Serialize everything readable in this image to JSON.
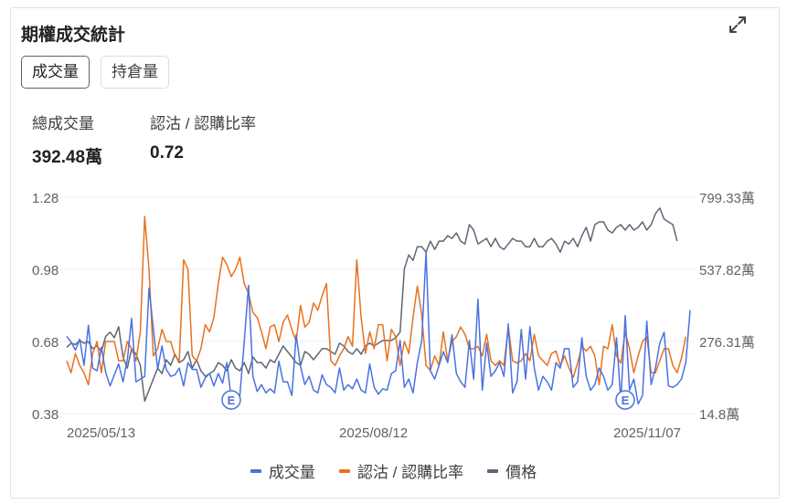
{
  "card": {
    "title": "期權成交統計"
  },
  "tabs": [
    {
      "label": "成交量",
      "active": true
    },
    {
      "label": "持倉量",
      "active": false
    }
  ],
  "stats": {
    "total_volume": {
      "label": "總成交量",
      "value": "392.48萬"
    },
    "ratio": {
      "label": "認沽 / 認購比率",
      "value": "0.72"
    }
  },
  "icons": {
    "expand": "expand-icon"
  },
  "colors": {
    "volume": "#4a72e0",
    "ratio": "#e8711e",
    "price": "#5f6675",
    "grid": "#ececec"
  },
  "chart_data": {
    "type": "line",
    "x_tick_labels": [
      "2025/05/13",
      "2025/08/12",
      "2025/11/07"
    ],
    "y_left_ticks": [
      "1.28",
      "0.98",
      "0.68",
      "0.38"
    ],
    "y_right_ticks": [
      "799.33萬",
      "537.82萬",
      "276.31萬",
      "14.8萬"
    ],
    "y_left_range": [
      0.38,
      1.28
    ],
    "y_right_range": [
      14.8,
      799.33
    ],
    "y_right_unit": "萬",
    "markers": [
      {
        "label": "E",
        "index": 38
      },
      {
        "label": "E",
        "index": 129
      }
    ],
    "series": [
      {
        "name": "成交量",
        "axis": "right",
        "values": [
          295,
          275,
          245,
          285,
          190,
          335,
          180,
          170,
          255,
          165,
          115,
          155,
          195,
          130,
          210,
          360,
          130,
          140,
          150,
          470,
          325,
          175,
          260,
          175,
          150,
          155,
          180,
          115,
          200,
          175,
          175,
          110,
          145,
          160,
          115,
          160,
          125,
          200,
          70,
          65,
          80,
          275,
          480,
          150,
          95,
          120,
          90,
          105,
          90,
          205,
          130,
          130,
          80,
          300,
          185,
          120,
          150,
          100,
          90,
          155,
          120,
          110,
          90,
          180,
          100,
          120,
          105,
          140,
          100,
          90,
          195,
          110,
          85,
          105,
          100,
          160,
          170,
          280,
          110,
          140,
          90,
          200,
          280,
          600,
          170,
          140,
          190,
          240,
          200,
          300,
          160,
          130,
          110,
          280,
          140,
          430,
          100,
          270,
          150,
          170,
          200,
          150,
          340,
          90,
          130,
          320,
          140,
          330,
          180,
          100,
          150,
          130,
          100,
          200,
          180,
          250,
          250,
          110,
          130,
          290,
          150,
          100,
          120,
          180,
          150,
          100,
          120,
          290,
          60,
          370,
          100,
          140,
          50,
          80,
          350,
          120,
          180,
          270,
          310,
          115,
          110,
          120,
          140,
          200,
          390
        ]
      },
      {
        "name": "認沽 / 認購比率",
        "axis": "left",
        "values": [
          0.6,
          0.55,
          0.63,
          0.58,
          0.55,
          0.5,
          0.63,
          0.68,
          0.55,
          0.68,
          0.68,
          0.68,
          0.6,
          0.6,
          0.68,
          0.65,
          0.6,
          0.72,
          1.2,
          0.98,
          0.62,
          0.65,
          0.73,
          0.68,
          0.68,
          0.62,
          0.6,
          1.02,
          0.98,
          0.62,
          0.6,
          0.65,
          0.75,
          0.72,
          0.78,
          0.92,
          1.03,
          1.0,
          0.95,
          0.98,
          1.03,
          0.92,
          0.88,
          0.8,
          0.78,
          0.72,
          0.65,
          0.74,
          0.75,
          0.68,
          0.76,
          0.79,
          0.73,
          0.68,
          0.83,
          0.74,
          0.76,
          0.84,
          0.81,
          0.87,
          0.92,
          0.6,
          0.58,
          0.62,
          0.65,
          0.7,
          0.66,
          1.02,
          0.78,
          0.63,
          0.72,
          0.65,
          0.75,
          0.75,
          0.6,
          0.73,
          0.7,
          0.58,
          0.68,
          0.63,
          0.78,
          0.91,
          0.79,
          0.58,
          0.56,
          0.62,
          0.58,
          0.72,
          0.6,
          0.68,
          0.7,
          0.74,
          0.71,
          0.65,
          0.65,
          0.66,
          0.62,
          0.71,
          0.6,
          0.58,
          0.6,
          0.58,
          0.74,
          0.6,
          0.59,
          0.6,
          0.63,
          0.6,
          0.71,
          0.62,
          0.6,
          0.58,
          0.63,
          0.64,
          0.58,
          0.62,
          0.57,
          0.53,
          0.59,
          0.66,
          0.64,
          0.66,
          0.62,
          0.5,
          0.66,
          0.65,
          0.75,
          0.62,
          0.59,
          0.72,
          0.65,
          0.55,
          0.62,
          0.68,
          0.7,
          0.55,
          0.55,
          0.6,
          0.65,
          0.65,
          0.58,
          0.55,
          0.61,
          0.7
        ]
      },
      {
        "name": "價格",
        "axis": "right",
        "values": [
          255,
          270,
          265,
          280,
          270,
          275,
          250,
          260,
          240,
          295,
          310,
          290,
          330,
          220,
          180,
          250,
          230,
          190,
          60,
          100,
          140,
          180,
          160,
          210,
          190,
          230,
          200,
          210,
          240,
          180,
          210,
          170,
          150,
          160,
          170,
          200,
          190,
          170,
          210,
          180,
          170,
          200,
          160,
          220,
          200,
          200,
          180,
          210,
          200,
          230,
          260,
          240,
          220,
          200,
          190,
          240,
          230,
          210,
          230,
          250,
          250,
          240,
          230,
          270,
          260,
          240,
          230,
          250,
          230,
          260,
          270,
          260,
          270,
          280,
          280,
          280,
          290,
          310,
          540,
          590,
          570,
          620,
          620,
          600,
          640,
          610,
          640,
          640,
          660,
          650,
          670,
          640,
          630,
          700,
          680,
          630,
          640,
          650,
          620,
          650,
          620,
          610,
          630,
          650,
          640,
          640,
          620,
          620,
          650,
          620,
          620,
          640,
          650,
          630,
          600,
          640,
          630,
          650,
          620,
          660,
          690,
          640,
          700,
          710,
          710,
          680,
          670,
          690,
          700,
          680,
          700,
          680,
          690,
          710,
          680,
          700,
          740,
          760,
          720,
          710,
          700,
          640
        ]
      }
    ]
  }
}
